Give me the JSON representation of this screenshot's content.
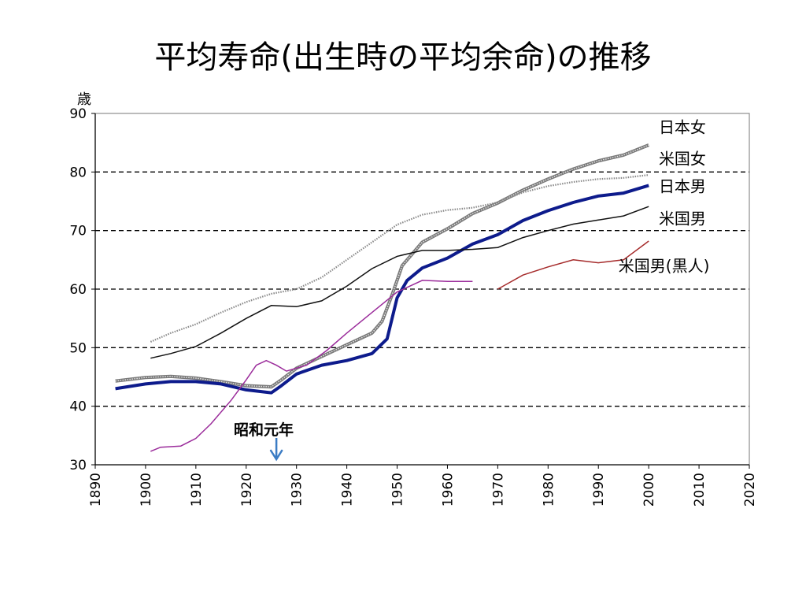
{
  "slide": {
    "title": "平均寿命(出生時の平均余命)の推移",
    "unit_label": "歳",
    "annotation": {
      "label": "昭和元年",
      "year": 1926
    }
  },
  "chart_data": {
    "type": "line",
    "title": "平均寿命(出生時の平均余命)の推移",
    "xlabel": "",
    "ylabel": "歳",
    "xlim": [
      1890,
      2020
    ],
    "ylim": [
      30,
      90
    ],
    "x_ticks": [
      1890,
      1900,
      1910,
      1920,
      1930,
      1940,
      1950,
      1960,
      1970,
      1980,
      1990,
      2000,
      2010,
      2020
    ],
    "y_ticks": [
      30,
      40,
      50,
      60,
      70,
      80,
      90
    ],
    "grid": {
      "horizontal_dashed": [
        40,
        50,
        60,
        70,
        80
      ],
      "vertical": false
    },
    "series": [
      {
        "name": "日本女",
        "color": "#8a8a8a",
        "style": "double",
        "points": [
          [
            1894,
            44.3
          ],
          [
            1900,
            44.9
          ],
          [
            1905,
            45.1
          ],
          [
            1910,
            44.8
          ],
          [
            1915,
            44.2
          ],
          [
            1920,
            43.5
          ],
          [
            1925,
            43.3
          ],
          [
            1927,
            44.5
          ],
          [
            1930,
            46.5
          ],
          [
            1935,
            48.5
          ],
          [
            1940,
            50.5
          ],
          [
            1945,
            52.5
          ],
          [
            1947,
            54.5
          ],
          [
            1949,
            59.0
          ],
          [
            1951,
            64.0
          ],
          [
            1955,
            68.0
          ],
          [
            1960,
            70.3
          ],
          [
            1965,
            72.9
          ],
          [
            1970,
            74.7
          ],
          [
            1975,
            76.9
          ],
          [
            1980,
            78.8
          ],
          [
            1985,
            80.5
          ],
          [
            1990,
            81.9
          ],
          [
            1995,
            82.9
          ],
          [
            2000,
            84.6
          ]
        ]
      },
      {
        "name": "米国女",
        "color": "#8a8a8a",
        "style": "dotted",
        "points": [
          [
            1901,
            51.0
          ],
          [
            1905,
            52.5
          ],
          [
            1910,
            54.0
          ],
          [
            1915,
            56.0
          ],
          [
            1920,
            57.8
          ],
          [
            1925,
            59.2
          ],
          [
            1930,
            60.0
          ],
          [
            1935,
            62.0
          ],
          [
            1940,
            65.0
          ],
          [
            1945,
            68.0
          ],
          [
            1950,
            71.0
          ],
          [
            1955,
            72.7
          ],
          [
            1960,
            73.5
          ],
          [
            1965,
            73.9
          ],
          [
            1970,
            74.8
          ],
          [
            1975,
            76.5
          ],
          [
            1980,
            77.6
          ],
          [
            1985,
            78.3
          ],
          [
            1990,
            78.8
          ],
          [
            1995,
            79.0
          ],
          [
            2000,
            79.5
          ]
        ]
      },
      {
        "name": "日本男",
        "color": "#0d1b8c",
        "style": "thick",
        "points": [
          [
            1894,
            43.0
          ],
          [
            1900,
            43.8
          ],
          [
            1905,
            44.2
          ],
          [
            1910,
            44.2
          ],
          [
            1915,
            43.8
          ],
          [
            1920,
            42.8
          ],
          [
            1925,
            42.3
          ],
          [
            1927,
            43.5
          ],
          [
            1930,
            45.5
          ],
          [
            1935,
            47.0
          ],
          [
            1940,
            47.8
          ],
          [
            1945,
            49.0
          ],
          [
            1948,
            51.5
          ],
          [
            1950,
            58.5
          ],
          [
            1952,
            61.5
          ],
          [
            1955,
            63.6
          ],
          [
            1960,
            65.3
          ],
          [
            1965,
            67.7
          ],
          [
            1970,
            69.3
          ],
          [
            1975,
            71.7
          ],
          [
            1980,
            73.4
          ],
          [
            1985,
            74.8
          ],
          [
            1990,
            75.9
          ],
          [
            1995,
            76.4
          ],
          [
            2000,
            77.7
          ]
        ]
      },
      {
        "name": "米国男",
        "color": "#111111",
        "style": "solid",
        "points": [
          [
            1901,
            48.2
          ],
          [
            1905,
            49.0
          ],
          [
            1910,
            50.2
          ],
          [
            1915,
            52.5
          ],
          [
            1920,
            55.0
          ],
          [
            1925,
            57.2
          ],
          [
            1930,
            57.0
          ],
          [
            1935,
            58.0
          ],
          [
            1940,
            60.5
          ],
          [
            1945,
            63.5
          ],
          [
            1950,
            65.6
          ],
          [
            1955,
            66.6
          ],
          [
            1960,
            66.6
          ],
          [
            1965,
            66.8
          ],
          [
            1970,
            67.1
          ],
          [
            1975,
            68.8
          ],
          [
            1980,
            70.0
          ],
          [
            1985,
            71.1
          ],
          [
            1990,
            71.8
          ],
          [
            1995,
            72.5
          ],
          [
            2000,
            74.1
          ]
        ]
      },
      {
        "name": "米国男(黒人)",
        "color": "#a52a2a",
        "style": "solid",
        "points": [
          [
            1970,
            60.0
          ],
          [
            1975,
            62.4
          ],
          [
            1980,
            63.8
          ],
          [
            1985,
            65.0
          ],
          [
            1990,
            64.5
          ],
          [
            1995,
            65.0
          ],
          [
            2000,
            68.2
          ]
        ]
      },
      {
        "name": "",
        "color": "#9b2c9b",
        "style": "solid",
        "points": [
          [
            1901,
            32.3
          ],
          [
            1903,
            33.0
          ],
          [
            1907,
            33.2
          ],
          [
            1910,
            34.5
          ],
          [
            1913,
            37.0
          ],
          [
            1917,
            41.0
          ],
          [
            1920,
            44.5
          ],
          [
            1922,
            47.0
          ],
          [
            1924,
            47.8
          ],
          [
            1926,
            47.0
          ],
          [
            1928,
            46.0
          ],
          [
            1932,
            47.0
          ],
          [
            1936,
            49.5
          ],
          [
            1940,
            52.5
          ],
          [
            1945,
            56.0
          ],
          [
            1950,
            59.5
          ],
          [
            1955,
            61.5
          ],
          [
            1960,
            61.3
          ],
          [
            1965,
            61.3
          ]
        ]
      }
    ],
    "legend_labels": [
      {
        "text": "日本女",
        "x": 2002,
        "y": 86.7
      },
      {
        "text": "米国女",
        "x": 2002,
        "y": 81.3
      },
      {
        "text": "日本男",
        "x": 2002,
        "y": 76.6
      },
      {
        "text": "米国男",
        "x": 2002,
        "y": 71.1
      },
      {
        "text": "米国男(黒人)",
        "x": 1994,
        "y": 63.0
      }
    ]
  }
}
